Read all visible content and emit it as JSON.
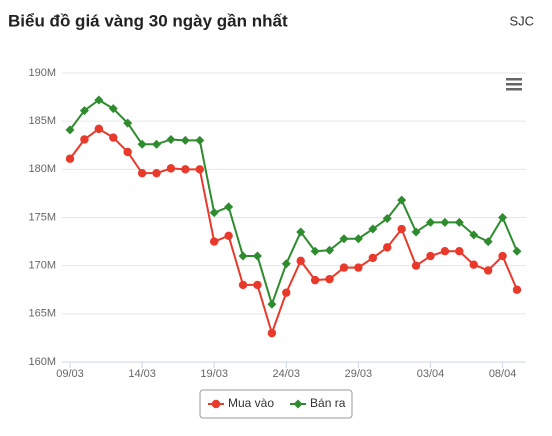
{
  "chart_data": {
    "type": "line",
    "title": "Biểu đồ giá vàng 30 ngày gần nhất",
    "subtitle": "SJC",
    "categories": [
      "09/03",
      null,
      null,
      null,
      null,
      "14/03",
      null,
      null,
      null,
      null,
      "19/03",
      null,
      null,
      null,
      null,
      "24/03",
      null,
      null,
      null,
      null,
      "29/03",
      null,
      null,
      null,
      null,
      "03/04",
      null,
      null,
      null,
      null,
      "08/04",
      null
    ],
    "series": [
      {
        "name": "Mua vào",
        "color": "#e8392b",
        "marker": "circle",
        "values": [
          181.1,
          183.1,
          184.2,
          183.3,
          181.8,
          179.6,
          179.6,
          180.1,
          180.0,
          180.0,
          172.5,
          173.1,
          168.0,
          168.0,
          163.0,
          167.2,
          170.5,
          168.5,
          168.6,
          169.8,
          169.8,
          170.8,
          171.9,
          173.8,
          170.0,
          171.0,
          171.5,
          171.5,
          170.1,
          169.5,
          171.0,
          167.5
        ]
      },
      {
        "name": "Bán ra",
        "color": "#2e8b2e",
        "marker": "diamond",
        "values": [
          184.1,
          186.1,
          187.2,
          186.3,
          184.8,
          182.6,
          182.6,
          183.1,
          183.0,
          183.0,
          175.5,
          176.1,
          171.0,
          171.0,
          166.0,
          170.2,
          173.5,
          171.5,
          171.6,
          172.8,
          172.8,
          173.8,
          174.9,
          176.8,
          173.5,
          174.5,
          174.5,
          174.5,
          173.2,
          172.5,
          175.0,
          171.5
        ]
      }
    ],
    "ylim": [
      160,
      190
    ],
    "yticks": [
      {
        "value": 160,
        "label": "160M"
      },
      {
        "value": 165,
        "label": "165M"
      },
      {
        "value": 170,
        "label": "170M"
      },
      {
        "value": 175,
        "label": "175M"
      },
      {
        "value": 180,
        "label": "180M"
      },
      {
        "value": 185,
        "label": "185M"
      },
      {
        "value": 190,
        "label": "190M"
      }
    ],
    "grid": true
  }
}
